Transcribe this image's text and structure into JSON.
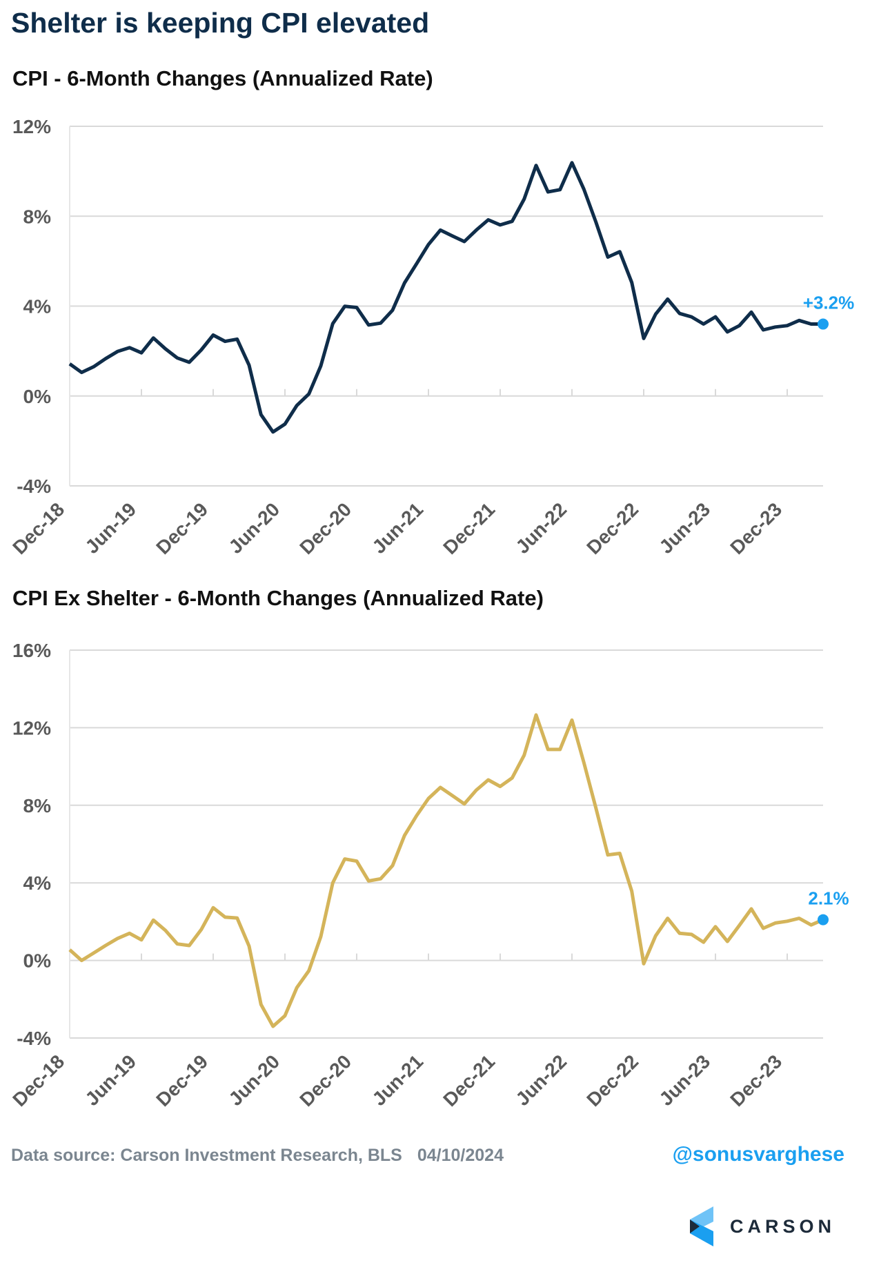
{
  "title": "Shelter is keeping CPI elevated",
  "footer": {
    "source": "Data source: Carson Investment Research, BLS",
    "date": "04/10/2024",
    "handle": "@sonusvarghese"
  },
  "logo": {
    "text": "CARSON"
  },
  "colors": {
    "cpi": "#0f2d4a",
    "ex_shelter": "#d4b45a",
    "highlight": "#1a9ff0",
    "grid": "#d9d9d9",
    "tick_label": "#595959"
  },
  "chart_data": [
    {
      "type": "line",
      "title": "CPI - 6-Month Changes (Annualized Rate)",
      "x_start": "Dec-18",
      "x_end": "Mar-24",
      "frequency": "monthly",
      "xticks": [
        "Dec-18",
        "Jun-19",
        "Dec-19",
        "Jun-20",
        "Dec-20",
        "Jun-21",
        "Dec-21",
        "Jun-22",
        "Dec-22",
        "Jun-23",
        "Dec-23"
      ],
      "yticks": [
        "12%",
        "8%",
        "4%",
        "0%",
        "-4%"
      ],
      "ylim": [
        -4,
        12
      ],
      "grid": true,
      "end_label": "+3.2%",
      "values": [
        1.43,
        1.05,
        1.3,
        1.66,
        1.98,
        2.15,
        1.92,
        2.58,
        2.1,
        1.69,
        1.5,
        2.05,
        2.71,
        2.43,
        2.53,
        1.37,
        -0.83,
        -1.6,
        -1.25,
        -0.42,
        0.09,
        1.34,
        3.22,
        3.99,
        3.94,
        3.16,
        3.24,
        3.82,
        5.03,
        5.88,
        6.74,
        7.38,
        7.12,
        6.87,
        7.38,
        7.84,
        7.61,
        7.77,
        8.76,
        10.26,
        9.08,
        9.18,
        10.38,
        9.2,
        7.74,
        6.18,
        6.42,
        5.05,
        2.56,
        3.64,
        4.31,
        3.67,
        3.52,
        3.2,
        3.52,
        2.85,
        3.13,
        3.73,
        2.94,
        3.07,
        3.13,
        3.36,
        3.2,
        3.2
      ]
    },
    {
      "type": "line",
      "title": "CPI Ex Shelter - 6-Month Changes (Annualized Rate)",
      "x_start": "Dec-18",
      "x_end": "Mar-24",
      "frequency": "monthly",
      "xticks": [
        "Dec-18",
        "Jun-19",
        "Dec-19",
        "Jun-20",
        "Dec-20",
        "Jun-21",
        "Dec-21",
        "Jun-22",
        "Dec-22",
        "Jun-23",
        "Dec-23"
      ],
      "yticks": [
        "16%",
        "12%",
        "8%",
        "4%",
        "0%",
        "-4%"
      ],
      "ylim": [
        -4,
        16
      ],
      "grid": true,
      "end_label": "2.1%",
      "values": [
        0.55,
        0,
        0.38,
        0.77,
        1.13,
        1.4,
        1.06,
        2.08,
        1.55,
        0.85,
        0.77,
        1.59,
        2.72,
        2.23,
        2.19,
        0.74,
        -2.27,
        -3.4,
        -2.85,
        -1.4,
        -0.53,
        1.23,
        4.0,
        5.23,
        5.12,
        4.1,
        4.21,
        4.89,
        6.44,
        7.46,
        8.35,
        8.92,
        8.5,
        8.07,
        8.78,
        9.31,
        8.97,
        9.41,
        10.58,
        12.66,
        10.88,
        10.88,
        12.39,
        10.2,
        7.86,
        5.44,
        5.52,
        3.57,
        -0.17,
        1.27,
        2.17,
        1.4,
        1.34,
        0.94,
        1.74,
        0.98,
        1.81,
        2.66,
        1.66,
        1.93,
        2.02,
        2.17,
        1.83,
        2.1
      ]
    }
  ]
}
